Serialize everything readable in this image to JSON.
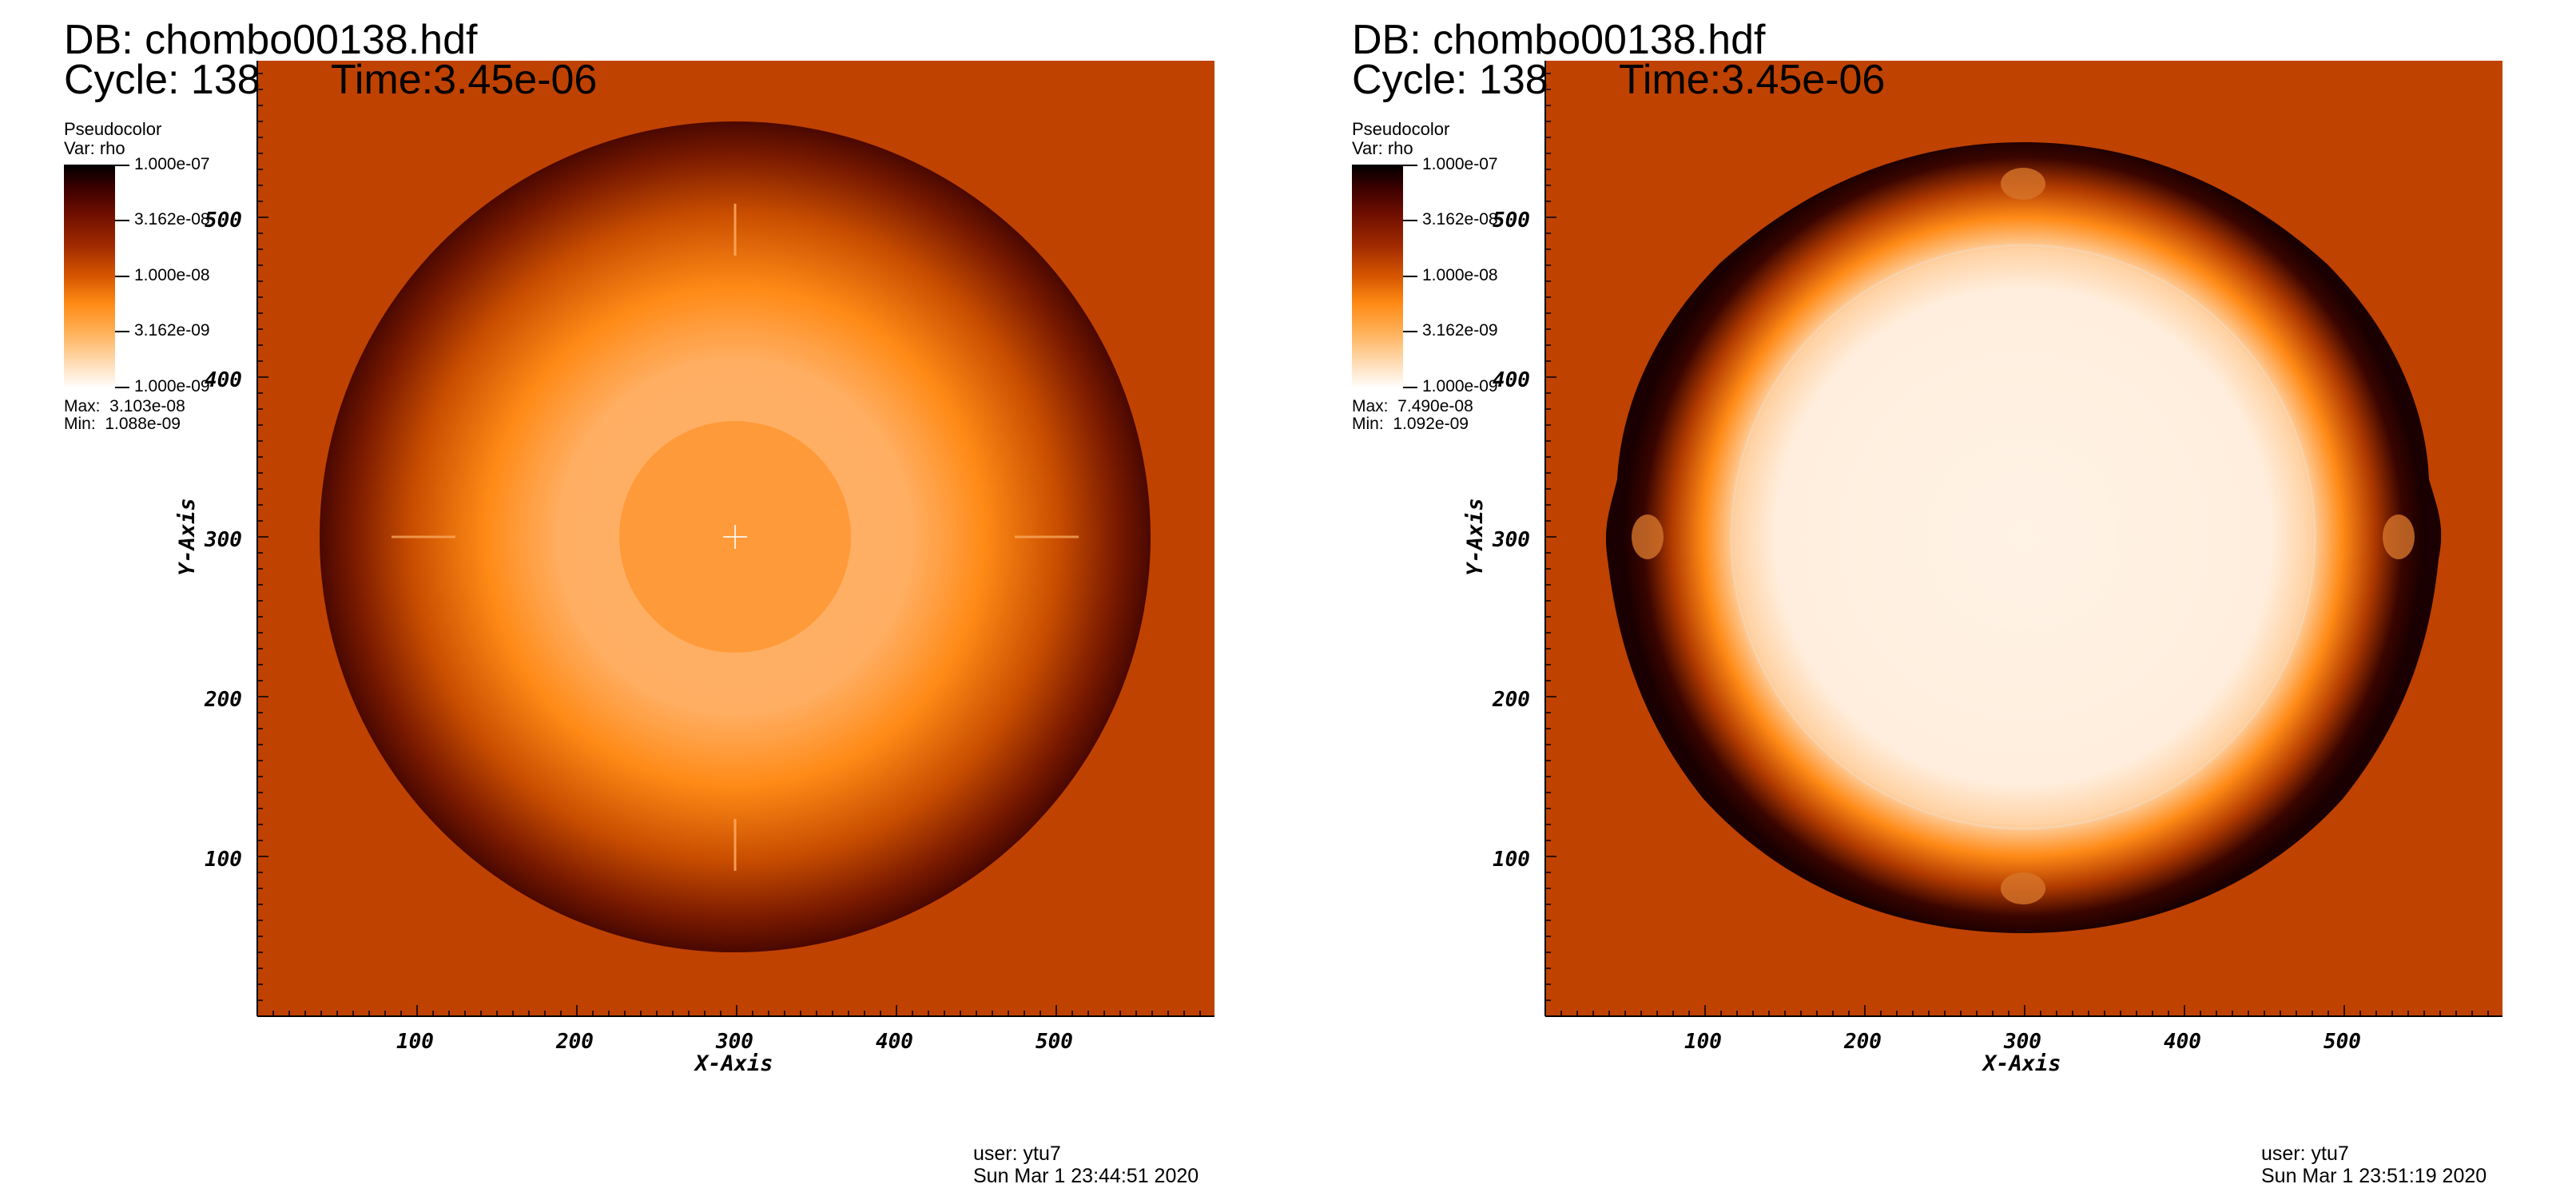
{
  "panels": [
    {
      "db": "DB: chombo00138.hdf",
      "cycle": "Cycle: 138",
      "time": "Time:3.45e-06",
      "legend": {
        "plot_type": "Pseudocolor",
        "variable": "Var: rho",
        "ticks": [
          "1.000e-07",
          "3.162e-08",
          "1.000e-08",
          "3.162e-09",
          "1.000e-09"
        ],
        "max": "Max:  3.103e-08",
        "min": "Min:  1.088e-09"
      },
      "x_ticks": [
        "100",
        "200",
        "300",
        "400",
        "500"
      ],
      "y_ticks": [
        "100",
        "200",
        "300",
        "400",
        "500"
      ],
      "x_axis_title": "X-Axis",
      "y_axis_title": "Y-Axis",
      "user": "user: ytu7",
      "date": "Sun Mar  1 23:44:51 2020"
    },
    {
      "db": "DB: chombo00138.hdf",
      "cycle": "Cycle: 138",
      "time": "Time:3.45e-06",
      "legend": {
        "plot_type": "Pseudocolor",
        "variable": "Var: rho",
        "ticks": [
          "1.000e-07",
          "3.162e-08",
          "1.000e-08",
          "3.162e-09",
          "1.000e-09"
        ],
        "max": "Max:  7.490e-08",
        "min": "Min:  1.092e-09"
      },
      "x_ticks": [
        "100",
        "200",
        "300",
        "400",
        "500"
      ],
      "y_ticks": [
        "100",
        "200",
        "300",
        "400",
        "500"
      ],
      "x_axis_title": "X-Axis",
      "y_axis_title": "Y-Axis",
      "user": "user: ytu7",
      "date": "Sun Mar  1 23:51:19 2020"
    }
  ],
  "colors": {
    "background_field": "#bf4200",
    "shell_outer": "#3a0a00",
    "shell_mid": "#e06a00",
    "plateau": "#ffb066",
    "core": "#ff9a3a",
    "hot_interior": "#fff3e6"
  }
}
